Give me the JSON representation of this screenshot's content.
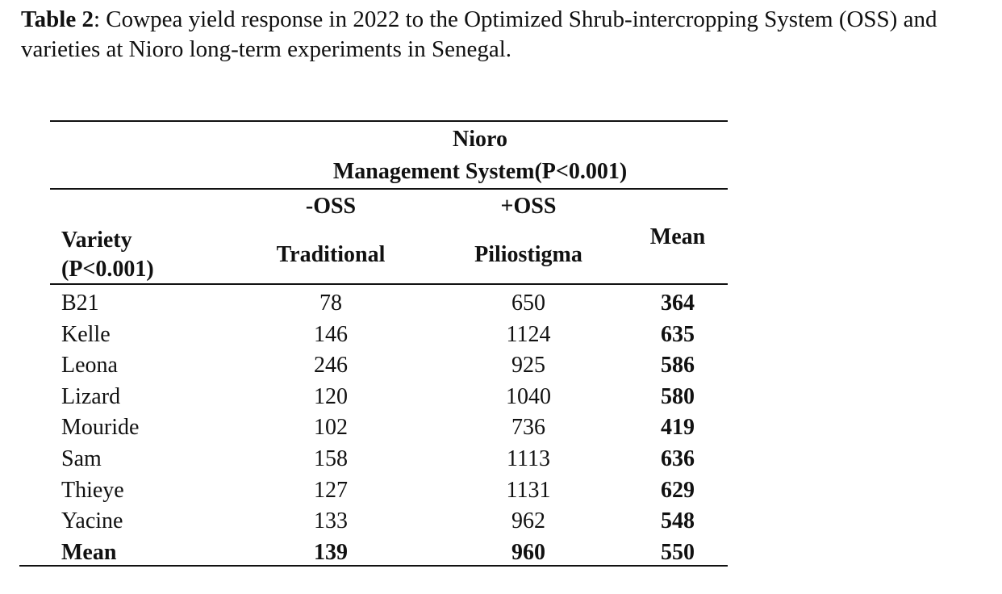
{
  "caption": {
    "label": "Table 2",
    "text": ": Cowpea yield response in 2022 to the Optimized Shrub-intercropping System (OSS) and varieties at Nioro long-term experiments in Senegal."
  },
  "table": {
    "site": "Nioro",
    "management_header": "Management System(P<0.001)",
    "sub_minus": "-OSS",
    "sub_plus": "+OSS",
    "variety_header_line1": "Variety",
    "variety_header_line2": "(P<0.001)",
    "col_traditional": "Traditional",
    "col_piliostigma": "Piliostigma",
    "col_mean": "Mean",
    "rows": [
      {
        "variety": "B21",
        "traditional": "78",
        "piliostigma": "650",
        "mean": "364"
      },
      {
        "variety": "Kelle",
        "traditional": "146",
        "piliostigma": "1124",
        "mean": "635"
      },
      {
        "variety": "Leona",
        "traditional": "246",
        "piliostigma": "925",
        "mean": "586"
      },
      {
        "variety": "Lizard",
        "traditional": "120",
        "piliostigma": "1040",
        "mean": "580"
      },
      {
        "variety": "Mouride",
        "traditional": "102",
        "piliostigma": "736",
        "mean": "419"
      },
      {
        "variety": "Sam",
        "traditional": "158",
        "piliostigma": "1113",
        "mean": "636"
      },
      {
        "variety": "Thieye",
        "traditional": "127",
        "piliostigma": "1131",
        "mean": "629"
      },
      {
        "variety": "Yacine",
        "traditional": "133",
        "piliostigma": "962",
        "mean": "548"
      }
    ],
    "mean_row": {
      "variety": "Mean",
      "traditional": "139",
      "piliostigma": "960",
      "mean": "550"
    }
  }
}
